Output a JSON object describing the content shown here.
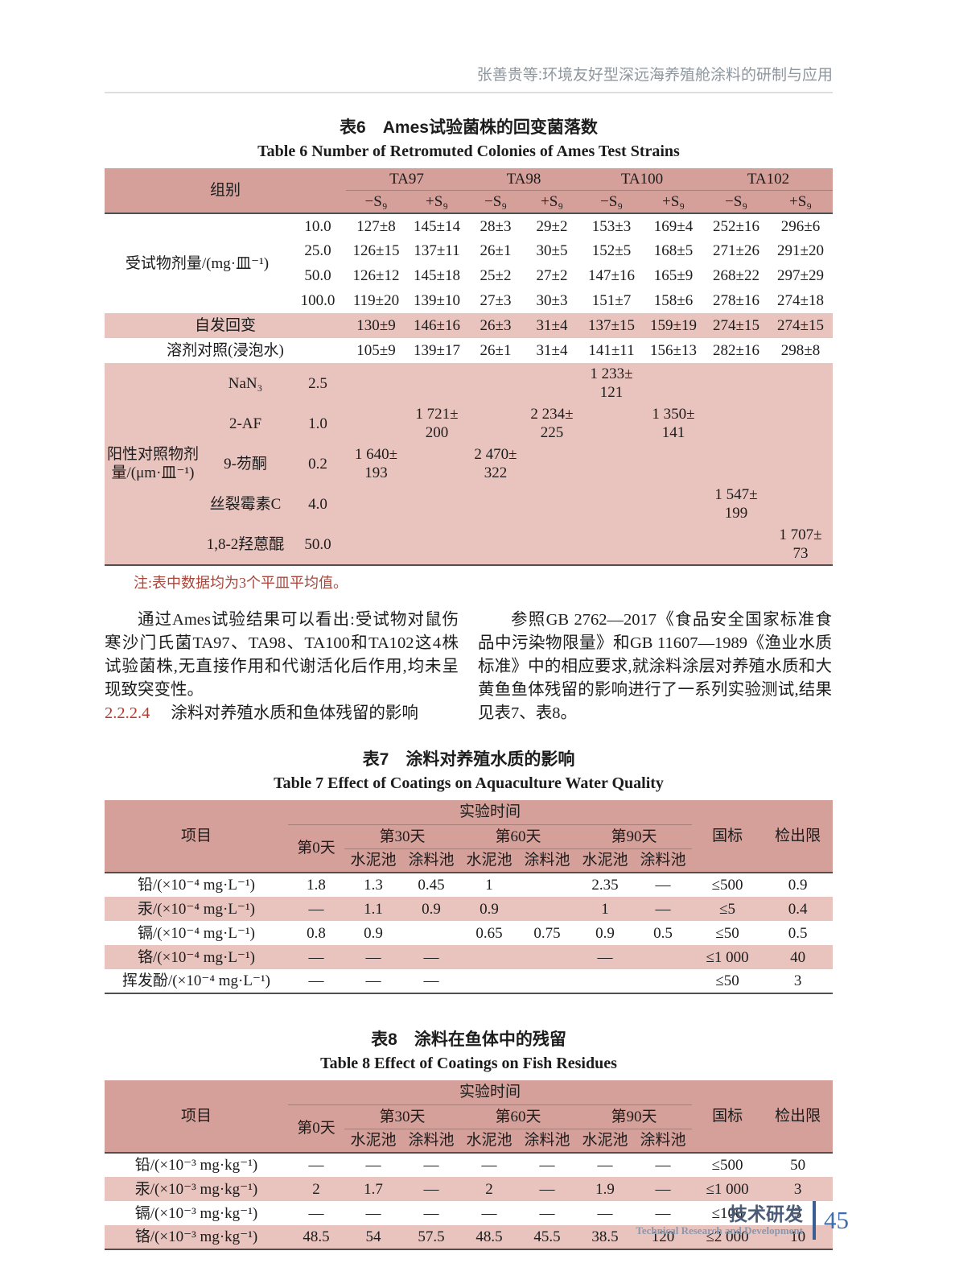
{
  "page_header": {
    "running_title": "张善贵等:环境友好型深远海养殖舱涂料的研制与应用"
  },
  "colors": {
    "table_header_bg": "#d6a09a",
    "table_row_highlight": "#e9c4be",
    "note_red": "#a8463b",
    "section_number_red": "#b5382a",
    "running_head_gray": "#8e969e",
    "footer_blue": "#3e6dae"
  },
  "table6": {
    "title_cn": "表6　Ames试验菌株的回变菌落数",
    "title_en": "Table 6   Number of Retromuted Colonies of Ames Test Strains",
    "group_label": "组别",
    "strains": [
      "TA97",
      "TA98",
      "TA100",
      "TA102"
    ],
    "sub": [
      "−S₉",
      "+S₉",
      "−S₉",
      "+S₉",
      "−S₉",
      "+S₉",
      "−S₉",
      "+S₉"
    ],
    "body": [
      {
        "cells": [
          {
            "t": "受试物剂量/(mg·皿⁻¹)",
            "cs": 2,
            "rs": 4,
            "cls": "lbl"
          },
          {
            "t": "10.0",
            "cls": "dose"
          },
          {
            "t": "127±8"
          },
          {
            "t": "145±14"
          },
          {
            "t": "28±3"
          },
          {
            "t": "29±2"
          },
          {
            "t": "153±3"
          },
          {
            "t": "169±4"
          },
          {
            "t": "252±16"
          },
          {
            "t": "296±6"
          }
        ]
      },
      {
        "cells": [
          {
            "t": "25.0",
            "cls": "dose"
          },
          {
            "t": "126±15"
          },
          {
            "t": "137±11"
          },
          {
            "t": "26±1"
          },
          {
            "t": "30±5"
          },
          {
            "t": "152±5"
          },
          {
            "t": "168±5"
          },
          {
            "t": "271±26"
          },
          {
            "t": "291±20"
          }
        ]
      },
      {
        "cells": [
          {
            "t": "50.0",
            "cls": "dose"
          },
          {
            "t": "126±12"
          },
          {
            "t": "145±18"
          },
          {
            "t": "25±2"
          },
          {
            "t": "27±2"
          },
          {
            "t": "147±16"
          },
          {
            "t": "165±9"
          },
          {
            "t": "268±22"
          },
          {
            "t": "297±29"
          }
        ]
      },
      {
        "cells": [
          {
            "t": "100.0",
            "cls": "dose"
          },
          {
            "t": "119±20"
          },
          {
            "t": "139±10"
          },
          {
            "t": "27±3"
          },
          {
            "t": "30±3"
          },
          {
            "t": "151±7"
          },
          {
            "t": "158±6"
          },
          {
            "t": "278±16"
          },
          {
            "t": "274±18"
          }
        ]
      },
      {
        "bg": "pink",
        "cells": [
          {
            "t": "自发回变",
            "cs": 3,
            "cls": "lbl"
          },
          {
            "t": "130±9"
          },
          {
            "t": "146±16"
          },
          {
            "t": "26±3"
          },
          {
            "t": "31±4"
          },
          {
            "t": "137±15"
          },
          {
            "t": "159±19"
          },
          {
            "t": "274±15"
          },
          {
            "t": "274±15"
          }
        ]
      },
      {
        "cells": [
          {
            "t": "溶剂对照(浸泡水)",
            "cs": 3,
            "cls": "lbl"
          },
          {
            "t": "105±9"
          },
          {
            "t": "139±17"
          },
          {
            "t": "26±1"
          },
          {
            "t": "31±4"
          },
          {
            "t": "141±11"
          },
          {
            "t": "156±13"
          },
          {
            "t": "282±16"
          },
          {
            "t": "298±8"
          }
        ]
      },
      {
        "bg": "pink",
        "cells": [
          {
            "t": "阳性对照物剂量/(μm·皿⁻¹)",
            "rs": 5,
            "cls": "lbl"
          },
          {
            "t": "NaN₃",
            "cls": "chem"
          },
          {
            "t": "2.5",
            "cls": "dose"
          },
          {
            "t": ""
          },
          {
            "t": ""
          },
          {
            "t": ""
          },
          {
            "t": ""
          },
          {
            "t": "1 233±\n121"
          },
          {
            "t": ""
          },
          {
            "t": ""
          },
          {
            "t": ""
          }
        ]
      },
      {
        "bg": "pink",
        "cells": [
          {
            "t": "2-AF",
            "cls": "chem"
          },
          {
            "t": "1.0",
            "cls": "dose"
          },
          {
            "t": ""
          },
          {
            "t": "1 721±\n200"
          },
          {
            "t": ""
          },
          {
            "t": "2 234±\n225"
          },
          {
            "t": ""
          },
          {
            "t": "1 350±\n141"
          },
          {
            "t": ""
          },
          {
            "t": ""
          }
        ]
      },
      {
        "bg": "pink",
        "cells": [
          {
            "t": "9-芴酮",
            "cls": "chem"
          },
          {
            "t": "0.2",
            "cls": "dose"
          },
          {
            "t": "1 640±\n193"
          },
          {
            "t": ""
          },
          {
            "t": "2 470±\n322"
          },
          {
            "t": ""
          },
          {
            "t": ""
          },
          {
            "t": ""
          },
          {
            "t": ""
          },
          {
            "t": ""
          }
        ]
      },
      {
        "bg": "pink",
        "cells": [
          {
            "t": "丝裂霉素C",
            "cls": "chem"
          },
          {
            "t": "4.0",
            "cls": "dose"
          },
          {
            "t": ""
          },
          {
            "t": ""
          },
          {
            "t": ""
          },
          {
            "t": ""
          },
          {
            "t": ""
          },
          {
            "t": ""
          },
          {
            "t": "1 547±\n199"
          },
          {
            "t": ""
          }
        ]
      },
      {
        "bg": "pink",
        "cells": [
          {
            "t": "1,8-2羟蒽醌",
            "cls": "chem"
          },
          {
            "t": "50.0",
            "cls": "dose"
          },
          {
            "t": ""
          },
          {
            "t": ""
          },
          {
            "t": ""
          },
          {
            "t": ""
          },
          {
            "t": ""
          },
          {
            "t": ""
          },
          {
            "t": ""
          },
          {
            "t": "1 707±\n73"
          }
        ]
      }
    ],
    "note": "注:表中数据均为3个平皿平均值。"
  },
  "body_text": {
    "para_left": "通过Ames试验结果可以看出:受试物对鼠伤寒沙门氏菌TA97、TA98、TA100和TA102这4株试验菌株,无直接作用和代谢活化后作用,均未呈现致突变性。",
    "heading_num": "2.2.2.4",
    "heading_text": "涂料对养殖水质和鱼体残留的影响",
    "para_right": "参照GB 2762—2017《食品安全国家标准食品中污染物限量》和GB 11607—1989《渔业水质标准》中的相应要求,就涂料涂层对养殖水质和大黄鱼鱼体残留的影响进行了一系列实验测试,结果见表7、表8。"
  },
  "table7": {
    "title_cn": "表7　涂料对养殖水质的影响",
    "title_en": "Table 7   Effect of Coatings on Aquaculture Water Quality",
    "item": "项目",
    "time": "实验时间",
    "day0": "第0天",
    "day30": "第30天",
    "day60": "第60天",
    "day90": "第90天",
    "cement": "水泥池",
    "coating": "涂料池",
    "gb": "国标",
    "limit": "检出限",
    "body": [
      {
        "cells": [
          {
            "t": "铅/(×10⁻⁴ mg·L⁻¹)",
            "cls": "lbl"
          },
          {
            "t": "1.8"
          },
          {
            "t": "1.3"
          },
          {
            "t": "0.45"
          },
          {
            "t": "1"
          },
          {
            "t": ""
          },
          {
            "t": "2.35"
          },
          {
            "t": "—"
          },
          {
            "t": "≤500"
          },
          {
            "t": "0.9"
          }
        ]
      },
      {
        "bg": "pink",
        "cells": [
          {
            "t": "汞/(×10⁻⁴ mg·L⁻¹)",
            "cls": "lbl"
          },
          {
            "t": "—"
          },
          {
            "t": "1.1"
          },
          {
            "t": "0.9"
          },
          {
            "t": "0.9"
          },
          {
            "t": ""
          },
          {
            "t": "1"
          },
          {
            "t": "—"
          },
          {
            "t": "≤5"
          },
          {
            "t": "0.4"
          }
        ]
      },
      {
        "cells": [
          {
            "t": "镉/(×10⁻⁴ mg·L⁻¹)",
            "cls": "lbl"
          },
          {
            "t": "0.8"
          },
          {
            "t": "0.9"
          },
          {
            "t": ""
          },
          {
            "t": "0.65"
          },
          {
            "t": "0.75"
          },
          {
            "t": "0.9"
          },
          {
            "t": "0.5"
          },
          {
            "t": "≤50"
          },
          {
            "t": "0.5"
          }
        ]
      },
      {
        "bg": "pink",
        "cells": [
          {
            "t": "铬/(×10⁻⁴ mg·L⁻¹)",
            "cls": "lbl"
          },
          {
            "t": "—"
          },
          {
            "t": "—"
          },
          {
            "t": "—"
          },
          {
            "t": ""
          },
          {
            "t": ""
          },
          {
            "t": "—"
          },
          {
            "t": ""
          },
          {
            "t": "≤1 000"
          },
          {
            "t": "40"
          }
        ]
      },
      {
        "cells": [
          {
            "t": "挥发酚/(×10⁻⁴ mg·L⁻¹)",
            "cls": "lbl"
          },
          {
            "t": "—"
          },
          {
            "t": "—"
          },
          {
            "t": "—"
          },
          {
            "t": ""
          },
          {
            "t": ""
          },
          {
            "t": ""
          },
          {
            "t": ""
          },
          {
            "t": "≤50"
          },
          {
            "t": "3"
          }
        ]
      }
    ]
  },
  "table8": {
    "title_cn": "表8　涂料在鱼体中的残留",
    "title_en": "Table 8   Effect of Coatings on Fish Residues",
    "item": "项目",
    "time": "实验时间",
    "day0": "第0天",
    "day30": "第30天",
    "day60": "第60天",
    "day90": "第90天",
    "cement": "水泥池",
    "coating": "涂料池",
    "gb": "国标",
    "limit": "检出限",
    "body": [
      {
        "cells": [
          {
            "t": "铅/(×10⁻³ mg·kg⁻¹)",
            "cls": "lbl"
          },
          {
            "t": "—"
          },
          {
            "t": "—"
          },
          {
            "t": "—"
          },
          {
            "t": "—"
          },
          {
            "t": "—"
          },
          {
            "t": "—"
          },
          {
            "t": "—"
          },
          {
            "t": "≤500"
          },
          {
            "t": "50"
          }
        ]
      },
      {
        "bg": "pink",
        "cells": [
          {
            "t": "汞/(×10⁻³ mg·kg⁻¹)",
            "cls": "lbl"
          },
          {
            "t": "2"
          },
          {
            "t": "1.7"
          },
          {
            "t": "—"
          },
          {
            "t": "2"
          },
          {
            "t": "—"
          },
          {
            "t": "1.9"
          },
          {
            "t": "—"
          },
          {
            "t": "≤1 000"
          },
          {
            "t": "3"
          }
        ]
      },
      {
        "cells": [
          {
            "t": "镉/(×10⁻³ mg·kg⁻¹)",
            "cls": "lbl"
          },
          {
            "t": "—"
          },
          {
            "t": "—"
          },
          {
            "t": "—"
          },
          {
            "t": "—"
          },
          {
            "t": "—"
          },
          {
            "t": "—"
          },
          {
            "t": "—"
          },
          {
            "t": "≤100"
          },
          {
            "t": "3"
          }
        ]
      },
      {
        "bg": "pink",
        "cells": [
          {
            "t": "铬/(×10⁻³ mg·kg⁻¹)",
            "cls": "lbl"
          },
          {
            "t": "48.5"
          },
          {
            "t": "54"
          },
          {
            "t": "57.5"
          },
          {
            "t": "48.5"
          },
          {
            "t": "45.5"
          },
          {
            "t": "38.5"
          },
          {
            "t": "120"
          },
          {
            "t": "≤2 000"
          },
          {
            "t": "10"
          }
        ]
      }
    ]
  },
  "page_footer": {
    "section_cn": "技术研发",
    "section_en": "Technical Research and Development",
    "page_number": "45"
  }
}
